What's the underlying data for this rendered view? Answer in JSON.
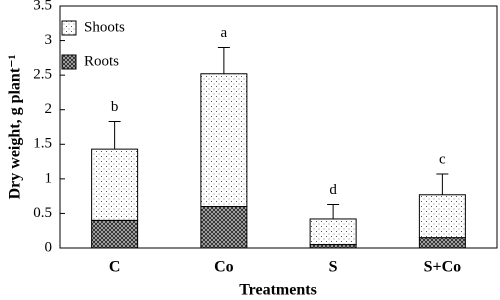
{
  "chart_data": {
    "type": "stacked_bar",
    "ylabel": "Dry weight, g plant⁻¹",
    "xlabel": "Treatments",
    "categories": [
      "C",
      "Co",
      "S",
      "S+Co"
    ],
    "series": [
      {
        "name": "Roots",
        "values": [
          0.4,
          0.6,
          0.05,
          0.15
        ]
      },
      {
        "name": "Shoots",
        "values": [
          1.03,
          1.92,
          0.37,
          0.62
        ],
        "errors": [
          0.4,
          0.38,
          0.21,
          0.3
        ]
      }
    ],
    "annotations": [
      "b",
      "a",
      "d",
      "c"
    ],
    "ylim": [
      0,
      3.5
    ],
    "yticks": [
      0,
      0.5,
      1,
      1.5,
      2,
      2.5,
      3,
      3.5
    ],
    "legend": "upper left"
  }
}
